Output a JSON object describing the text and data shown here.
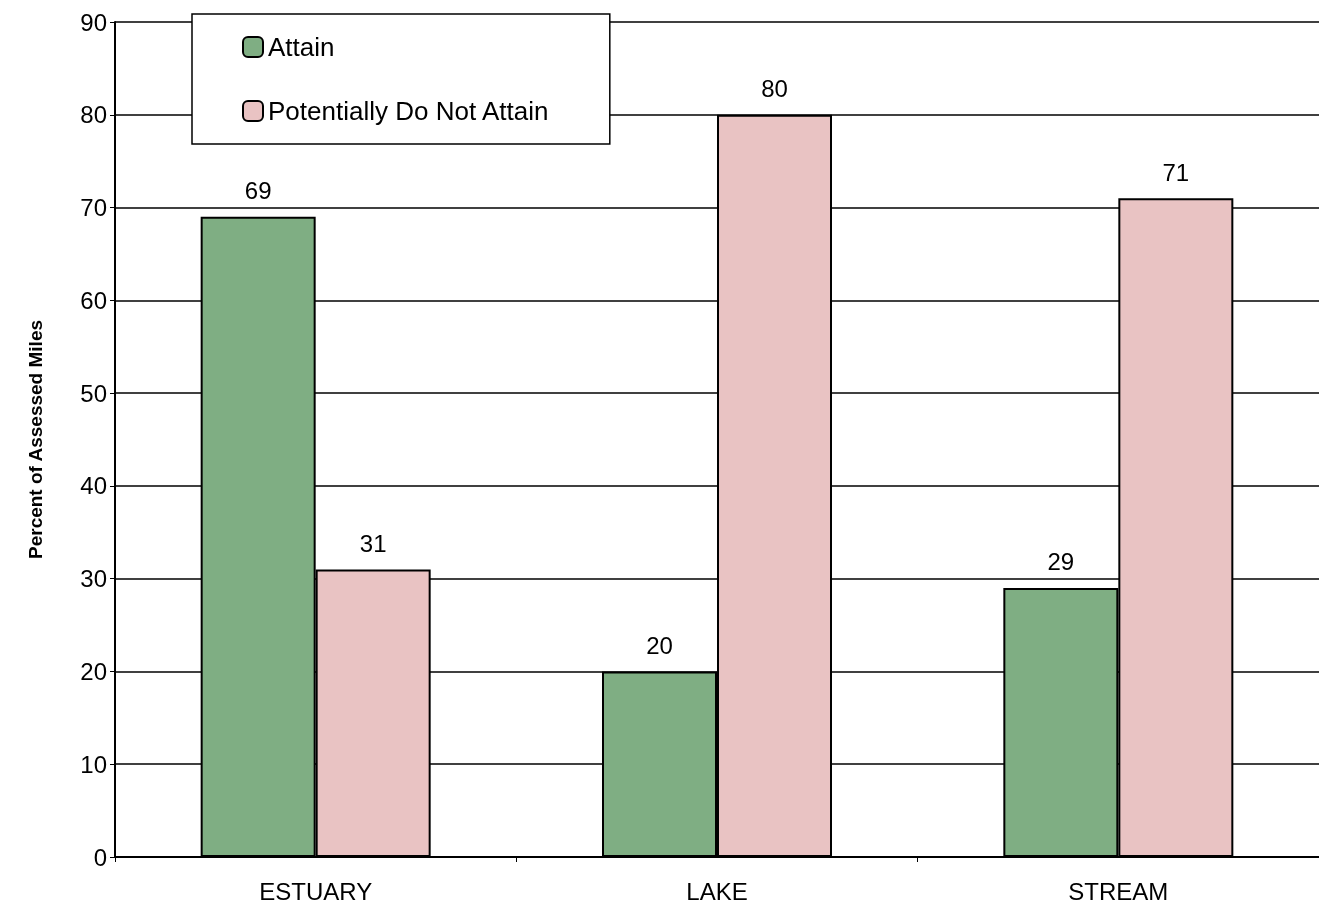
{
  "chart_data": {
    "type": "bar",
    "ylabel": "Percent of Assessed Miles",
    "categories": [
      "ESTUARY",
      "LAKE",
      "STREAM"
    ],
    "series": [
      {
        "name": "Attain",
        "color": "#7fae83",
        "values": [
          69,
          20,
          29
        ]
      },
      {
        "name": "Potentially Do Not Attain",
        "color": "#e9c3c3",
        "values": [
          31,
          80,
          71
        ]
      }
    ],
    "ylim": [
      0,
      90
    ],
    "yticks": [
      0,
      10,
      20,
      30,
      40,
      50,
      60,
      70,
      80,
      90
    ],
    "grid": "y",
    "legend": "top left",
    "data_labels": true
  }
}
